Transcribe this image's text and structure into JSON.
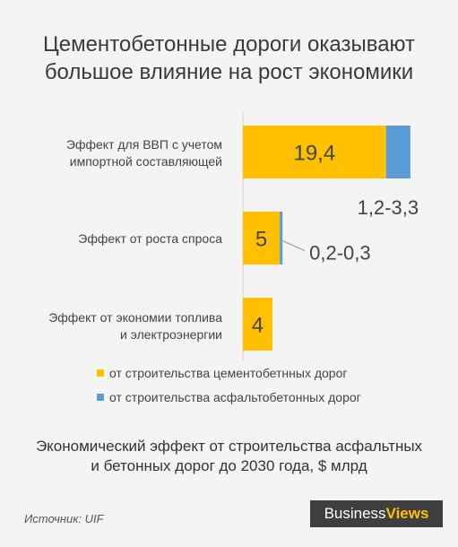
{
  "header": {
    "title_line1": "Цементобетонные дороги оказывают",
    "title_line2": "большое влияние на рост экономики"
  },
  "chart_data": {
    "type": "bar",
    "orientation": "horizontal",
    "stacked": true,
    "categories": [
      [
        "Эффект для ВВП с учетом",
        "импортной составляющей"
      ],
      [
        "Эффект от роста спроса"
      ],
      [
        "Эффект от экономии топлива",
        "и электроэнергии"
      ]
    ],
    "series": [
      {
        "name": "от строительства цементобетнных дорог",
        "color": "#ffc000",
        "values": [
          19.4,
          5,
          4
        ],
        "labels": [
          "19,4",
          "5",
          "4"
        ]
      },
      {
        "name": "от строительства асфальтобетонных дорог",
        "color": "#5b9bd5",
        "values": [
          3.3,
          0.3,
          0
        ],
        "labels": [
          "1,2-3,3",
          "0,2-0,3",
          ""
        ]
      }
    ],
    "xlim": [
      0,
      26
    ],
    "grid": false,
    "legend_position": "bottom"
  },
  "footnote": {
    "line1": "Экономический эффект от строительства асфальтных",
    "line2": "и бетонных дорог до 2030 года, $ млрд"
  },
  "source": "Источник: UIF",
  "logo": {
    "part1": "Business",
    "part2": "Views"
  }
}
